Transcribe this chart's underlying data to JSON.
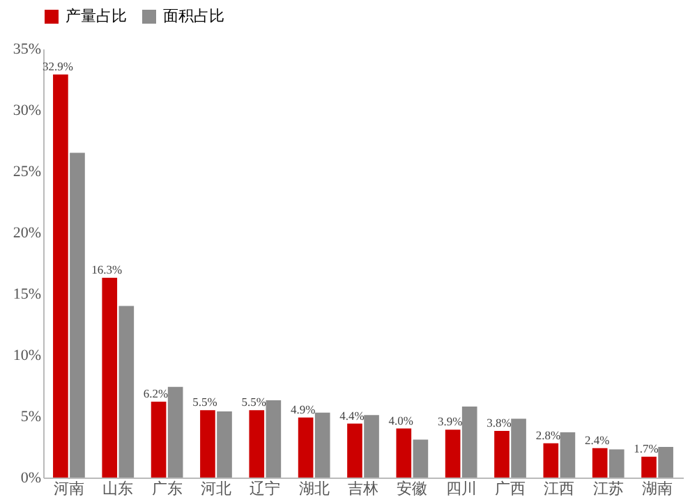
{
  "chart_data": {
    "type": "bar",
    "categories": [
      "河南",
      "山东",
      "广东",
      "河北",
      "辽宁",
      "湖北",
      "吉林",
      "安徽",
      "四川",
      "广西",
      "江西",
      "江苏",
      "湖南"
    ],
    "series": [
      {
        "name": "产量占比",
        "color": "#cc0000",
        "values": [
          32.9,
          16.3,
          6.2,
          5.5,
          5.5,
          4.9,
          4.4,
          4.0,
          3.9,
          3.8,
          2.8,
          2.4,
          1.7
        ],
        "value_labels": [
          "32.9%",
          "16.3%",
          "6.2%",
          "5.5%",
          "5.5%",
          "4.9%",
          "4.4%",
          "4.0%",
          "3.9%",
          "3.8%",
          "2.8%",
          "2.4%",
          "1.7%"
        ]
      },
      {
        "name": "面积占比",
        "color": "#8c8c8c",
        "values": [
          26.5,
          14.0,
          7.4,
          5.4,
          6.3,
          5.3,
          5.1,
          3.1,
          5.8,
          4.8,
          3.7,
          2.3,
          2.5
        ]
      }
    ],
    "ylim": [
      0,
      35
    ],
    "yticks": [
      {
        "value": 0,
        "label": "0%"
      },
      {
        "value": 5,
        "label": "5%"
      },
      {
        "value": 10,
        "label": "10%"
      },
      {
        "value": 15,
        "label": "15%"
      },
      {
        "value": 20,
        "label": "20%"
      },
      {
        "value": 25,
        "label": "25%"
      },
      {
        "value": 30,
        "label": "30%"
      },
      {
        "value": 35,
        "label": "35%"
      }
    ],
    "legend": "top"
  }
}
